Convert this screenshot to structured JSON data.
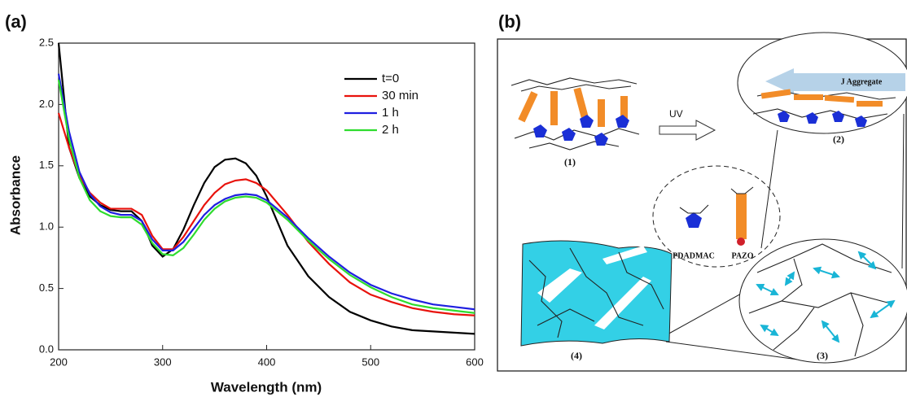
{
  "chart_data": {
    "type": "line",
    "panel_label": "(a)",
    "x_label": "Wavelength (nm)",
    "y_label": "Absorbance",
    "x": [
      200,
      210,
      220,
      230,
      240,
      250,
      260,
      270,
      280,
      290,
      300,
      310,
      320,
      330,
      340,
      350,
      360,
      370,
      380,
      390,
      400,
      420,
      440,
      460,
      480,
      500,
      520,
      540,
      560,
      580,
      600
    ],
    "series": [
      {
        "name": "t=0",
        "color": "#000000",
        "values": [
          2.5,
          1.65,
          1.4,
          1.25,
          1.18,
          1.14,
          1.13,
          1.13,
          1.05,
          0.85,
          0.76,
          0.82,
          0.98,
          1.18,
          1.36,
          1.49,
          1.55,
          1.56,
          1.52,
          1.42,
          1.25,
          0.85,
          0.6,
          0.43,
          0.31,
          0.24,
          0.19,
          0.16,
          0.15,
          0.14,
          0.13
        ]
      },
      {
        "name": "30 min",
        "color": "#e8120c",
        "values": [
          1.93,
          1.65,
          1.42,
          1.28,
          1.2,
          1.15,
          1.15,
          1.15,
          1.1,
          0.93,
          0.82,
          0.82,
          0.92,
          1.05,
          1.18,
          1.28,
          1.35,
          1.38,
          1.39,
          1.36,
          1.3,
          1.1,
          0.88,
          0.7,
          0.55,
          0.45,
          0.39,
          0.34,
          0.31,
          0.29,
          0.28
        ]
      },
      {
        "name": "1 h",
        "color": "#1f1fe0",
        "values": [
          2.25,
          1.78,
          1.45,
          1.27,
          1.17,
          1.12,
          1.1,
          1.1,
          1.05,
          0.9,
          0.81,
          0.81,
          0.88,
          0.99,
          1.1,
          1.18,
          1.23,
          1.26,
          1.27,
          1.26,
          1.22,
          1.08,
          0.91,
          0.76,
          0.63,
          0.53,
          0.46,
          0.41,
          0.37,
          0.35,
          0.33
        ]
      },
      {
        "name": "2 h",
        "color": "#2edc2e",
        "values": [
          2.2,
          1.72,
          1.4,
          1.22,
          1.13,
          1.09,
          1.08,
          1.08,
          1.02,
          0.87,
          0.78,
          0.77,
          0.83,
          0.94,
          1.06,
          1.15,
          1.21,
          1.24,
          1.25,
          1.24,
          1.2,
          1.06,
          0.89,
          0.74,
          0.61,
          0.51,
          0.43,
          0.37,
          0.34,
          0.32,
          0.3
        ]
      }
    ],
    "xlim": [
      200,
      600
    ],
    "xticks": [
      200,
      300,
      400,
      500,
      600
    ],
    "ylim": [
      0,
      2.5
    ],
    "yticks": [
      {
        "value": 0,
        "label": "0.0"
      },
      0.5,
      {
        "value": 1,
        "label": "1.0"
      },
      1.5,
      {
        "value": 2,
        "label": "2.0"
      },
      2.5
    ],
    "legend": "upper right",
    "grid": false
  },
  "diagram": {
    "panel_label": "(b)",
    "labels": {
      "step1": "(1)",
      "step2": "(2)",
      "step3": "(3)",
      "step4": "(4)",
      "uv": "UV",
      "aggregate": "J Aggregate",
      "polycation": "PDADMAC",
      "polyanion": "PAZO"
    }
  }
}
